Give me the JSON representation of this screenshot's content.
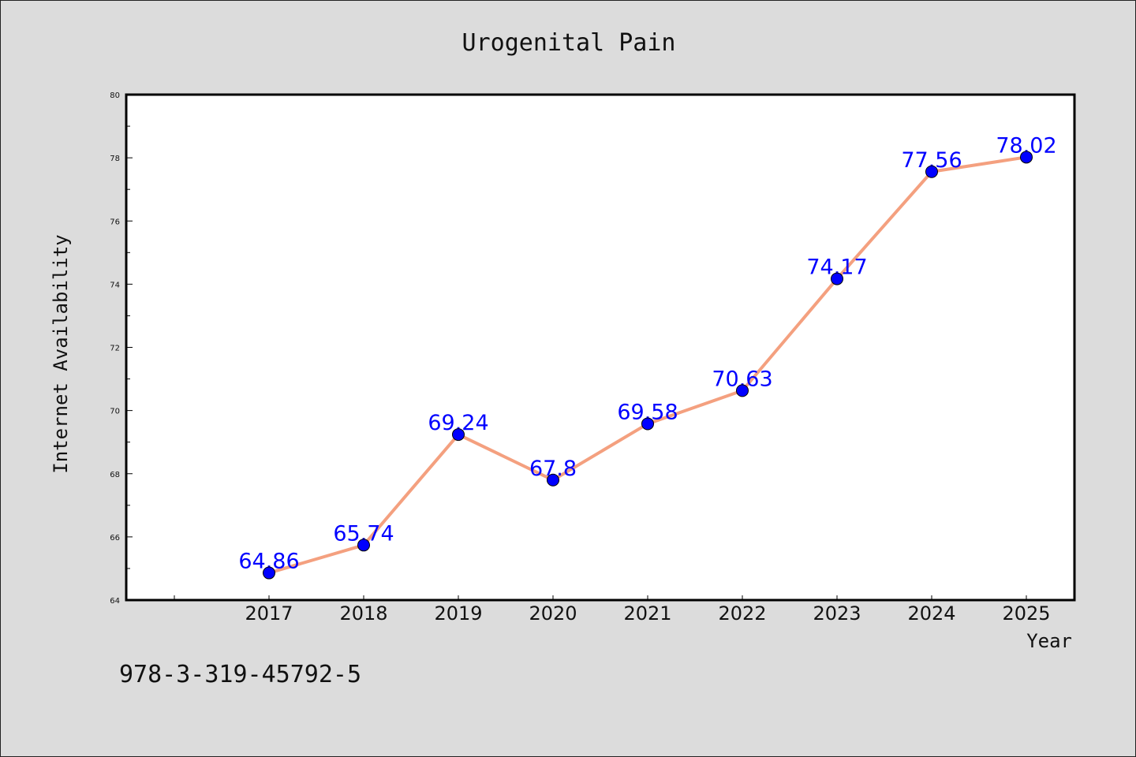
{
  "footer": {
    "code": "978-3-319-45792-5"
  },
  "chart_data": {
    "type": "line",
    "title": "Urogenital Pain",
    "xlabel": "Year",
    "ylabel": "Internet Availability",
    "categories": [
      "2017",
      "2018",
      "2019",
      "2020",
      "2021",
      "2022",
      "2023",
      "2024",
      "2025"
    ],
    "series": [
      {
        "values": [
          64.86,
          65.74,
          69.24,
          67.8,
          69.58,
          70.63,
          74.17,
          77.56,
          78.02
        ],
        "line_color": "#f4a07f",
        "marker_color": "#0000ff"
      }
    ],
    "data_labels": [
      "64.86",
      "65.74",
      "69.24",
      "67.8",
      "69.58",
      "70.63",
      "74.17",
      "77.56",
      "78.02"
    ],
    "ylim": [
      64,
      80
    ],
    "yticks": [
      "64",
      "66",
      "68",
      "70",
      "72",
      "74",
      "76",
      "78",
      "80"
    ],
    "grid": false,
    "background_color": "#dcdcdc",
    "plot_area_color": "#ffffff"
  }
}
